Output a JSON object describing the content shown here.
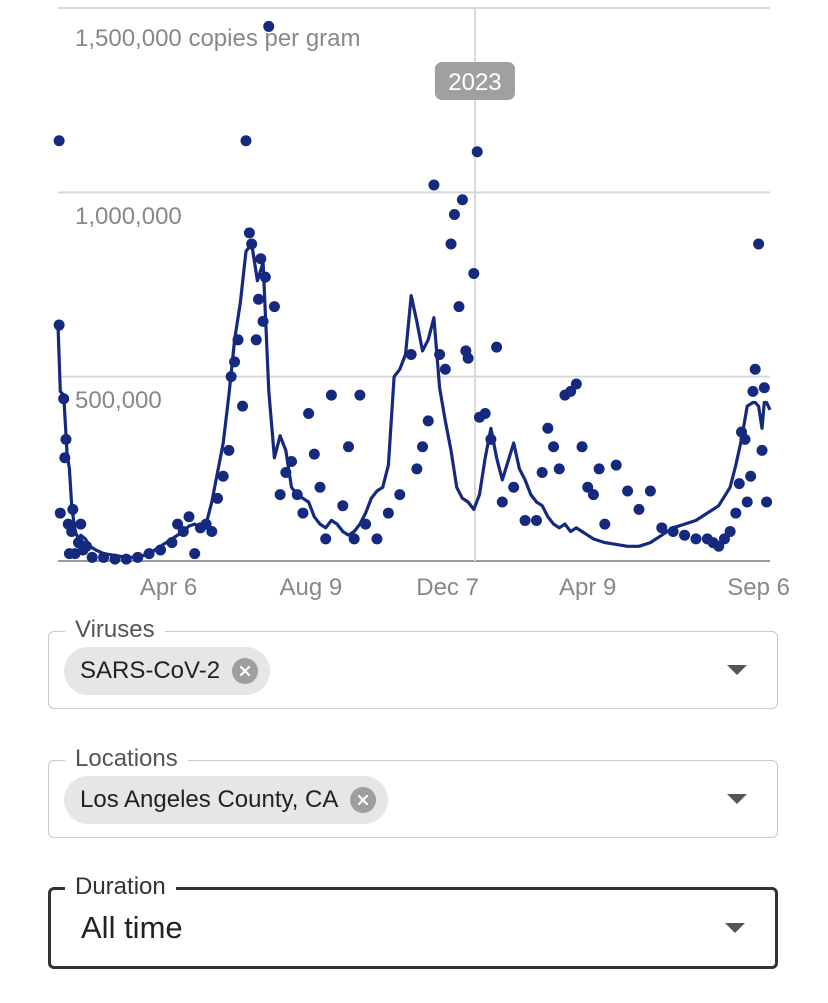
{
  "chart_data": {
    "type": "line+scatter",
    "ylabel_top": "1,500,000 copies per gram",
    "y_ticks": [
      {
        "value": 1500000,
        "label": "1,500,000 copies per gram"
      },
      {
        "value": 1000000,
        "label": "1,000,000"
      },
      {
        "value": 500000,
        "label": "500,000"
      }
    ],
    "ylim": [
      0,
      1500000
    ],
    "x_ticks": [
      "Apr 6",
      "Aug 9",
      "Dec 7",
      "Apr 9",
      "Sep 6"
    ],
    "x_tick_days": [
      97,
      222,
      342,
      465,
      615
    ],
    "xlim_days": [
      0,
      625
    ],
    "year_marker": {
      "label": "2023",
      "day": 366
    },
    "colors": {
      "series": "#15297e",
      "grid": "#d9d9d9",
      "tick_text": "#888888",
      "marker_bg": "#a0a0a0"
    },
    "line": {
      "x": [
        0,
        2,
        5,
        8,
        10,
        12,
        15,
        18,
        20,
        24,
        28,
        33,
        40,
        50,
        60,
        70,
        80,
        90,
        100,
        110,
        115,
        120,
        125,
        130,
        135,
        140,
        145,
        150,
        155,
        160,
        165,
        170,
        175,
        180,
        185,
        190,
        195,
        200,
        205,
        210,
        215,
        220,
        225,
        230,
        235,
        240,
        245,
        250,
        255,
        260,
        265,
        270,
        275,
        280,
        285,
        290,
        295,
        300,
        305,
        310,
        315,
        320,
        325,
        330,
        335,
        340,
        345,
        350,
        355,
        360,
        365,
        370,
        375,
        380,
        385,
        390,
        395,
        400,
        405,
        410,
        415,
        420,
        425,
        430,
        435,
        440,
        445,
        450,
        455,
        460,
        465,
        470,
        480,
        490,
        500,
        510,
        520,
        530,
        540,
        550,
        560,
        570,
        580,
        590,
        595,
        600,
        605,
        610,
        612,
        615,
        618,
        620,
        622,
        625
      ],
      "y": [
        640000,
        460000,
        450000,
        290000,
        250000,
        150000,
        80000,
        60000,
        70000,
        60000,
        40000,
        30000,
        20000,
        15000,
        10000,
        10000,
        20000,
        40000,
        60000,
        80000,
        95000,
        100000,
        90000,
        100000,
        160000,
        240000,
        320000,
        450000,
        600000,
        700000,
        840000,
        860000,
        760000,
        810000,
        460000,
        280000,
        340000,
        300000,
        200000,
        180000,
        170000,
        160000,
        120000,
        100000,
        90000,
        110000,
        100000,
        80000,
        70000,
        80000,
        100000,
        130000,
        170000,
        190000,
        200000,
        260000,
        500000,
        520000,
        560000,
        720000,
        650000,
        570000,
        600000,
        660000,
        470000,
        380000,
        300000,
        200000,
        170000,
        160000,
        140000,
        180000,
        280000,
        360000,
        280000,
        220000,
        270000,
        320000,
        250000,
        220000,
        180000,
        160000,
        150000,
        120000,
        100000,
        90000,
        100000,
        80000,
        90000,
        80000,
        70000,
        60000,
        50000,
        45000,
        40000,
        40000,
        50000,
        70000,
        90000,
        100000,
        110000,
        130000,
        150000,
        200000,
        260000,
        330000,
        420000,
        430000,
        430000,
        420000,
        360000,
        430000,
        430000,
        410000
      ]
    },
    "points": [
      [
        1,
        1140000
      ],
      [
        1,
        640000
      ],
      [
        2,
        130000
      ],
      [
        5,
        440000
      ],
      [
        6,
        280000
      ],
      [
        7,
        330000
      ],
      [
        9,
        100000
      ],
      [
        10,
        20000
      ],
      [
        12,
        80000
      ],
      [
        13,
        140000
      ],
      [
        15,
        20000
      ],
      [
        18,
        50000
      ],
      [
        20,
        100000
      ],
      [
        22,
        30000
      ],
      [
        25,
        40000
      ],
      [
        30,
        10000
      ],
      [
        40,
        10000
      ],
      [
        50,
        5000
      ],
      [
        60,
        5000
      ],
      [
        70,
        10000
      ],
      [
        80,
        20000
      ],
      [
        90,
        30000
      ],
      [
        100,
        50000
      ],
      [
        105,
        100000
      ],
      [
        110,
        80000
      ],
      [
        115,
        120000
      ],
      [
        120,
        20000
      ],
      [
        125,
        90000
      ],
      [
        130,
        100000
      ],
      [
        135,
        80000
      ],
      [
        140,
        170000
      ],
      [
        145,
        230000
      ],
      [
        150,
        300000
      ],
      [
        152,
        500000
      ],
      [
        155,
        540000
      ],
      [
        158,
        600000
      ],
      [
        162,
        420000
      ],
      [
        165,
        1140000
      ],
      [
        168,
        890000
      ],
      [
        170,
        860000
      ],
      [
        174,
        600000
      ],
      [
        176,
        710000
      ],
      [
        178,
        820000
      ],
      [
        180,
        650000
      ],
      [
        182,
        770000
      ],
      [
        185,
        1450000
      ],
      [
        190,
        690000
      ],
      [
        195,
        180000
      ],
      [
        200,
        240000
      ],
      [
        205,
        270000
      ],
      [
        210,
        180000
      ],
      [
        215,
        130000
      ],
      [
        220,
        400000
      ],
      [
        225,
        290000
      ],
      [
        230,
        200000
      ],
      [
        235,
        60000
      ],
      [
        240,
        450000
      ],
      [
        250,
        150000
      ],
      [
        255,
        310000
      ],
      [
        260,
        60000
      ],
      [
        265,
        450000
      ],
      [
        270,
        100000
      ],
      [
        280,
        60000
      ],
      [
        290,
        130000
      ],
      [
        300,
        180000
      ],
      [
        310,
        560000
      ],
      [
        315,
        250000
      ],
      [
        320,
        310000
      ],
      [
        325,
        380000
      ],
      [
        330,
        1020000
      ],
      [
        335,
        560000
      ],
      [
        340,
        520000
      ],
      [
        345,
        860000
      ],
      [
        348,
        940000
      ],
      [
        352,
        690000
      ],
      [
        355,
        980000
      ],
      [
        358,
        570000
      ],
      [
        360,
        550000
      ],
      [
        365,
        780000
      ],
      [
        368,
        1110000
      ],
      [
        370,
        390000
      ],
      [
        375,
        400000
      ],
      [
        380,
        330000
      ],
      [
        385,
        580000
      ],
      [
        390,
        160000
      ],
      [
        400,
        200000
      ],
      [
        410,
        110000
      ],
      [
        420,
        110000
      ],
      [
        425,
        240000
      ],
      [
        430,
        360000
      ],
      [
        435,
        310000
      ],
      [
        440,
        250000
      ],
      [
        445,
        450000
      ],
      [
        450,
        460000
      ],
      [
        455,
        480000
      ],
      [
        460,
        310000
      ],
      [
        465,
        200000
      ],
      [
        470,
        180000
      ],
      [
        475,
        250000
      ],
      [
        480,
        100000
      ],
      [
        490,
        260000
      ],
      [
        500,
        190000
      ],
      [
        510,
        140000
      ],
      [
        520,
        190000
      ],
      [
        530,
        90000
      ],
      [
        540,
        80000
      ],
      [
        550,
        70000
      ],
      [
        560,
        60000
      ],
      [
        570,
        60000
      ],
      [
        575,
        50000
      ],
      [
        580,
        40000
      ],
      [
        585,
        60000
      ],
      [
        590,
        80000
      ],
      [
        595,
        130000
      ],
      [
        598,
        210000
      ],
      [
        600,
        350000
      ],
      [
        603,
        330000
      ],
      [
        605,
        160000
      ],
      [
        608,
        230000
      ],
      [
        610,
        460000
      ],
      [
        612,
        520000
      ],
      [
        615,
        860000
      ],
      [
        618,
        300000
      ],
      [
        620,
        470000
      ],
      [
        622,
        160000
      ]
    ]
  },
  "filters": {
    "viruses": {
      "label": "Viruses",
      "chip": "SARS-CoV-2"
    },
    "locations": {
      "label": "Locations",
      "chip": "Los Angeles County, CA"
    },
    "duration": {
      "label": "Duration",
      "value": "All time"
    }
  }
}
